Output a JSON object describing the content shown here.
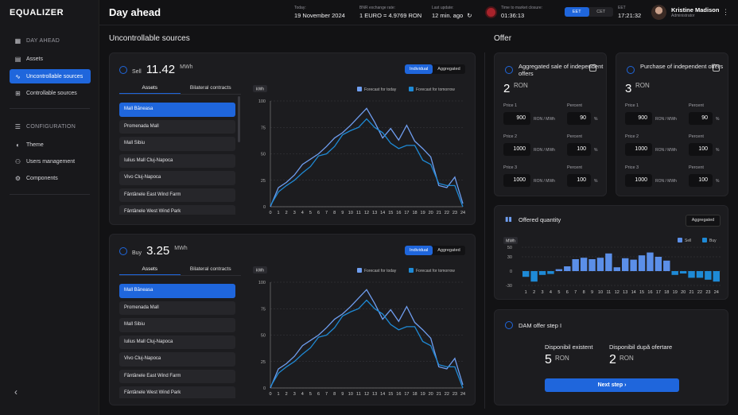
{
  "app": {
    "logo": "EQUALIZER",
    "page_title": "Day ahead"
  },
  "sidebar": {
    "day_ahead_header": "DAY AHEAD",
    "day_ahead_items": [
      {
        "label": "Assets",
        "icon": "grid-icon"
      },
      {
        "label": "Uncontrollable sources",
        "icon": "pulse-icon",
        "active": true
      },
      {
        "label": "Controllable sources",
        "icon": "sliders-icon"
      }
    ],
    "config_header": "CONFIGURATION",
    "config_items": [
      {
        "label": "Theme",
        "icon": "half-circle-icon"
      },
      {
        "label": "Users management",
        "icon": "users-icon"
      },
      {
        "label": "Components",
        "icon": "components-icon"
      }
    ]
  },
  "topbar": {
    "today_label": "Today:",
    "today_value": "19 November 2024",
    "bnr_label": "BNR exchange rate:",
    "bnr_value": "1 EURO = 4.9769 RON",
    "update_label": "Last update:",
    "update_value": "12 min. ago",
    "closure_label": "Time to market closure:",
    "closure_value": "01:36:13",
    "tz_options": [
      "EET",
      "CET"
    ],
    "tz_selected": "EET",
    "clock_label": "EET",
    "clock_value": "17:21:32",
    "user_name": "Kristine Madison",
    "user_role": "Administrator"
  },
  "uncontrollable": {
    "title": "Uncontrollable sources",
    "panels": [
      {
        "direction": "Sell",
        "value": "11.42",
        "unit": "MWh"
      },
      {
        "direction": "Buy",
        "value": "3.25",
        "unit": "MWh"
      }
    ],
    "view_options": [
      "Individual",
      "Aggregated"
    ],
    "tabs": [
      "Assets",
      "Bilateral contracts"
    ],
    "assets": [
      "Mall Băneasa",
      "Promenada Mall",
      "Mall Sibiu",
      "Iulius Mall Cluj-Napoca",
      "Vivo Cluj-Napoca",
      "Fântânele East Wind Farm",
      "Fântânele West Wind Park"
    ]
  },
  "offer": {
    "title": "Offer",
    "cards": [
      {
        "title": "Aggregated sale of independent offers",
        "value": "2",
        "currency": "RON",
        "rows": [
          {
            "price_label": "Price 1",
            "price": "900",
            "percent": "90"
          },
          {
            "price_label": "Price 2",
            "price": "1000",
            "percent": "100"
          },
          {
            "price_label": "Price 3",
            "price": "1000",
            "percent": "100"
          }
        ]
      },
      {
        "title": "Purchase of independent offers",
        "value": "3",
        "currency": "RON",
        "rows": [
          {
            "price_label": "Price 1",
            "price": "900",
            "percent": "90"
          },
          {
            "price_label": "Price 2",
            "price": "1000",
            "percent": "100"
          },
          {
            "price_label": "Price 3",
            "price": "1000",
            "percent": "100"
          }
        ]
      }
    ],
    "percent_label": "Percent",
    "price_unit": "RON / MWh",
    "percent_unit": "%",
    "offered_quantity": {
      "title": "Offered quantity",
      "button": "Aggregated"
    },
    "dam": {
      "title": "DAM offer step I",
      "existing_label": "Disponibil existent",
      "existing_value": "5",
      "after_label": "Disponibil după ofertare",
      "after_value": "2",
      "currency": "RON",
      "button": "Next step"
    }
  },
  "chart_data": [
    {
      "type": "line",
      "title": "",
      "ylabel": "kWh",
      "ylim": [
        0,
        100
      ],
      "x": [
        0,
        1,
        2,
        3,
        4,
        5,
        6,
        7,
        8,
        9,
        10,
        11,
        12,
        13,
        14,
        15,
        16,
        17,
        18,
        19,
        20,
        21,
        22,
        23,
        24
      ],
      "series": [
        {
          "name": "Forecast for today",
          "color": "#6f9ef0",
          "values": [
            0,
            18,
            23,
            30,
            40,
            45,
            50,
            57,
            65,
            70,
            77,
            85,
            93,
            80,
            65,
            74,
            63,
            77,
            62,
            55,
            47,
            20,
            18,
            28,
            3
          ]
        },
        {
          "name": "Forecast for tomorrow",
          "color": "#1e8ad6",
          "values": [
            1,
            14,
            20,
            25,
            32,
            38,
            48,
            50,
            57,
            68,
            72,
            75,
            83,
            75,
            70,
            60,
            55,
            58,
            58,
            44,
            40,
            22,
            20,
            20,
            0
          ]
        }
      ]
    },
    {
      "type": "line",
      "title": "",
      "ylabel": "kWh",
      "ylim": [
        0,
        100
      ],
      "x": [
        0,
        1,
        2,
        3,
        4,
        5,
        6,
        7,
        8,
        9,
        10,
        11,
        12,
        13,
        14,
        15,
        16,
        17,
        18,
        19,
        20,
        21,
        22,
        23,
        24
      ],
      "series": [
        {
          "name": "Forecast for today",
          "color": "#6f9ef0",
          "values": [
            0,
            18,
            23,
            30,
            40,
            45,
            50,
            57,
            65,
            70,
            77,
            85,
            93,
            80,
            65,
            74,
            63,
            77,
            62,
            55,
            47,
            20,
            18,
            28,
            3
          ]
        },
        {
          "name": "Forecast for tomorrow",
          "color": "#1e8ad6",
          "values": [
            1,
            14,
            20,
            25,
            32,
            38,
            48,
            50,
            57,
            68,
            72,
            75,
            83,
            75,
            70,
            60,
            55,
            58,
            58,
            44,
            40,
            22,
            20,
            20,
            0
          ]
        }
      ]
    },
    {
      "type": "bar",
      "title": "Offered quantity",
      "ylabel": "MWh",
      "ylim": [
        -30,
        50
      ],
      "categories": [
        1,
        2,
        3,
        4,
        5,
        6,
        7,
        8,
        9,
        10,
        11,
        12,
        13,
        14,
        15,
        16,
        17,
        18,
        19,
        20,
        21,
        22,
        23,
        24
      ],
      "series": [
        {
          "name": "Sell",
          "color": "#5b8fe8",
          "values": [
            0,
            0,
            0,
            0,
            4,
            10,
            25,
            28,
            25,
            28,
            37,
            8,
            27,
            24,
            33,
            39,
            30,
            22,
            0,
            0,
            0,
            0,
            0,
            0
          ]
        },
        {
          "name": "Buy",
          "color": "#1e8ad6",
          "values": [
            -12,
            -22,
            -8,
            -6,
            0,
            0,
            0,
            0,
            0,
            0,
            0,
            0,
            0,
            0,
            0,
            0,
            0,
            0,
            -8,
            -5,
            -14,
            -14,
            -18,
            -22
          ]
        }
      ]
    }
  ]
}
